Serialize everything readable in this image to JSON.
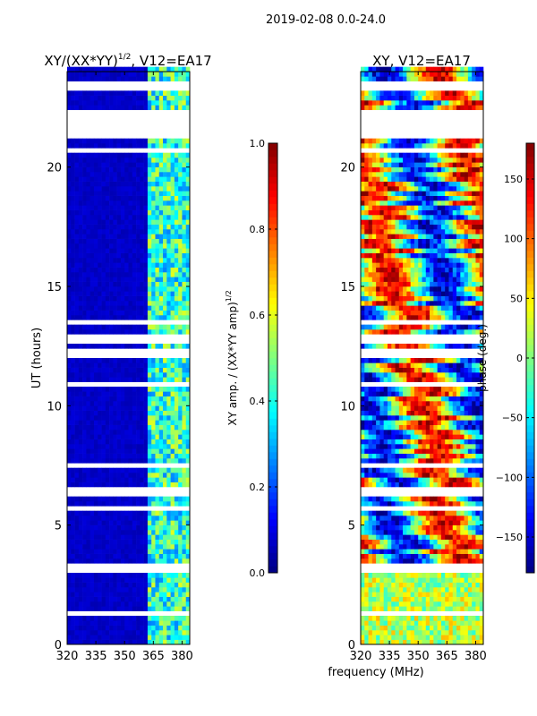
{
  "suptitle": "2019-02-08 0.0-24.0",
  "chart_data": [
    {
      "type": "heatmap",
      "title_main": "XY/(XX*YY)",
      "title_sup": "1/2",
      "title_tail": ", V12=EA17",
      "xlabel": "frequency (MHz)",
      "ylabel": "UT (hours)",
      "xlim": [
        320,
        384
      ],
      "ylim": [
        0,
        24
      ],
      "xticks": [
        320,
        335,
        350,
        365,
        380
      ],
      "yticks": [
        0,
        5,
        10,
        15,
        20
      ],
      "colormap": "jet",
      "clim": [
        0.0,
        1.0
      ],
      "colorbar": {
        "label_main": "XY amp. / (XX*YY amp)",
        "label_sup": "1/2",
        "ticks": [
          "0.0",
          "0.2",
          "0.4",
          "0.6",
          "0.8",
          "1.0"
        ],
        "tick_values": [
          0.0,
          0.2,
          0.4,
          0.6,
          0.8,
          1.0
        ]
      },
      "background_level": 0.05,
      "bright_band_MHz": [
        361,
        384
      ],
      "bright_band_level": [
        0.25,
        0.6
      ]
    },
    {
      "type": "heatmap",
      "title": "XY, V12=EA17",
      "xlim": [
        320,
        384
      ],
      "ylim": [
        0,
        24
      ],
      "xticks": [
        320,
        335,
        350,
        365,
        380
      ],
      "yticks": [
        0,
        5,
        10,
        15,
        20
      ],
      "colormap": "jet",
      "clim": [
        -180,
        180
      ],
      "colorbar": {
        "label": "phase (deg.)",
        "ticks": [
          "−150",
          "−100",
          "−50",
          "0",
          "50",
          "100",
          "150"
        ],
        "tick_values": [
          -150,
          -100,
          -50,
          0,
          50,
          100,
          150
        ]
      }
    }
  ],
  "flagged_gaps_hours": [
    [
      23.2,
      23.6
    ],
    [
      22.5,
      22.6
    ],
    [
      21.1,
      22.3
    ],
    [
      20.6,
      20.7
    ],
    [
      13.4,
      13.6
    ],
    [
      12.6,
      12.9
    ],
    [
      12.0,
      12.3
    ],
    [
      10.8,
      10.9
    ],
    [
      7.5,
      7.7
    ],
    [
      6.3,
      6.6
    ],
    [
      5.7,
      5.9
    ],
    [
      3.0,
      3.4
    ],
    [
      1.8,
      1.9
    ],
    [
      1.3,
      1.4
    ],
    [
      0.6,
      0.7
    ]
  ]
}
